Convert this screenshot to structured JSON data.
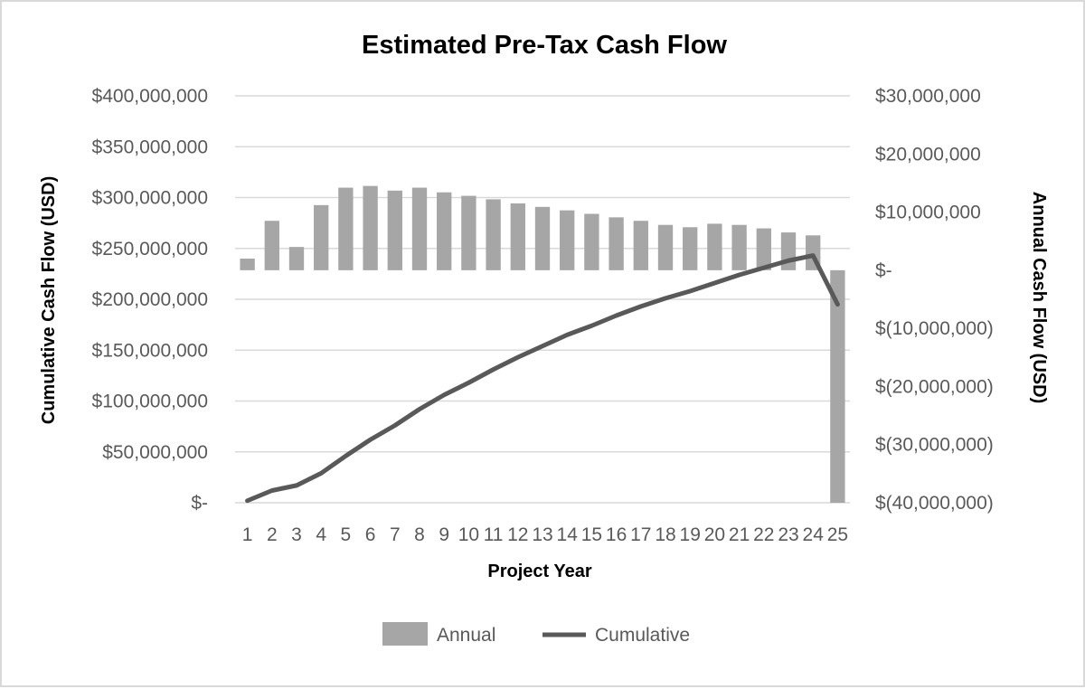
{
  "chart_data": {
    "type": "bar-line-combo",
    "title": "Estimated Pre-Tax Cash Flow",
    "xlabel": "Project Year",
    "ylabel_left": "Cumulative Cash Flow (USD)",
    "ylabel_right": "Annual Cash Flow (USD)",
    "categories": [
      "1",
      "2",
      "3",
      "4",
      "5",
      "6",
      "7",
      "8",
      "9",
      "10",
      "11",
      "12",
      "13",
      "14",
      "15",
      "16",
      "17",
      "18",
      "19",
      "20",
      "21",
      "22",
      "23",
      "24",
      "25"
    ],
    "left_axis": {
      "ylim": [
        0,
        400000000
      ],
      "ticks": [
        0,
        50000000,
        100000000,
        150000000,
        200000000,
        250000000,
        300000000,
        350000000,
        400000000
      ],
      "tick_labels": [
        "$-",
        "$50,000,000",
        "$100,000,000",
        "$150,000,000",
        "$200,000,000",
        "$250,000,000",
        "$300,000,000",
        "$350,000,000",
        "$400,000,000"
      ]
    },
    "right_axis": {
      "ylim": [
        -40000000,
        30000000
      ],
      "ticks": [
        -40000000,
        -30000000,
        -20000000,
        -10000000,
        0,
        10000000,
        20000000,
        30000000
      ],
      "tick_labels": [
        "$(40,000,000)",
        "$(30,000,000)",
        "$(20,000,000)",
        "$(10,000,000)",
        "$-",
        "$10,000,000",
        "$20,000,000",
        "$30,000,000"
      ]
    },
    "series": [
      {
        "name": "Annual",
        "type": "bar",
        "axis": "right",
        "color": "#a6a6a6",
        "values": [
          2000000,
          8500000,
          4000000,
          11200000,
          14200000,
          14500000,
          13700000,
          14200000,
          13400000,
          12800000,
          12200000,
          11500000,
          10900000,
          10300000,
          9700000,
          9100000,
          8500000,
          7800000,
          7400000,
          8000000,
          7800000,
          7200000,
          6500000,
          6000000,
          -40000000
        ]
      },
      {
        "name": "Cumulative",
        "type": "line",
        "axis": "left",
        "color": "#595959",
        "values": [
          2000000,
          12000000,
          17000000,
          29000000,
          46000000,
          62000000,
          76000000,
          92000000,
          106000000,
          118000000,
          131000000,
          143000000,
          154000000,
          165000000,
          174000000,
          184000000,
          193000000,
          201000000,
          208000000,
          216000000,
          224000000,
          231000000,
          238000000,
          243000000,
          195000000
        ]
      }
    ],
    "grid": true,
    "legend": "bottom"
  }
}
